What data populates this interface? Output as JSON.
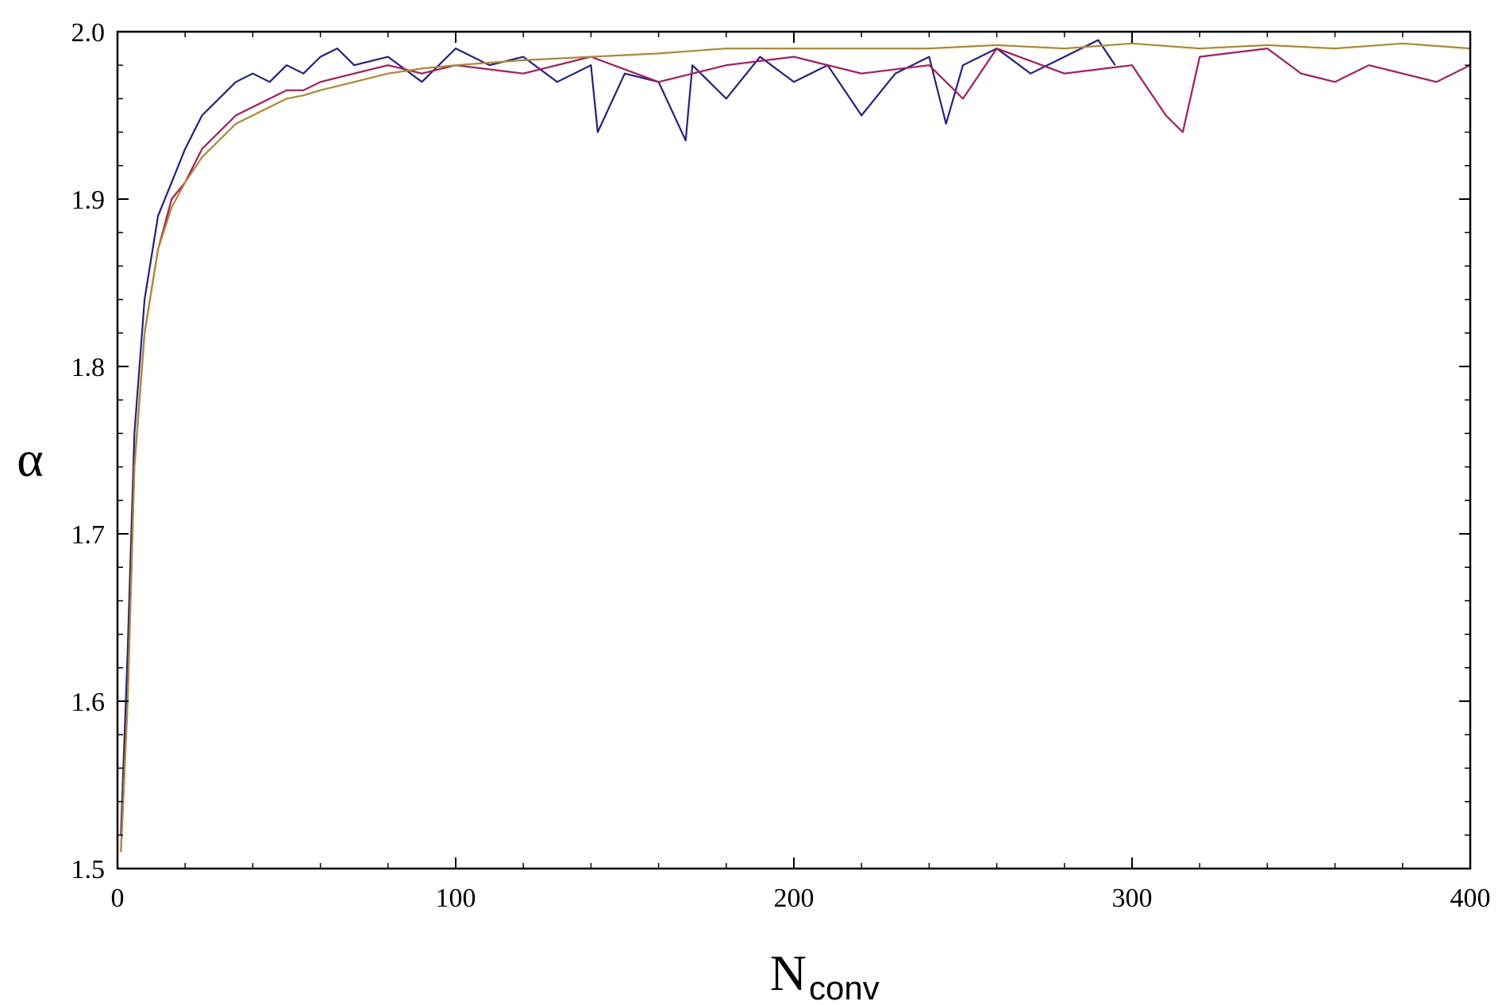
{
  "chart_data": {
    "type": "line",
    "title": "",
    "xlabel": "N",
    "xlabel_subscript": "conv",
    "ylabel": "α",
    "xlim": [
      0,
      400
    ],
    "ylim": [
      1.5,
      2.0
    ],
    "x_ticks": [
      0,
      100,
      200,
      300,
      400
    ],
    "x_tick_labels": [
      "0",
      "100",
      "200",
      "300",
      "400"
    ],
    "y_ticks": [
      1.5,
      1.6,
      1.7,
      1.8,
      1.9,
      2.0
    ],
    "y_tick_labels": [
      "1.5",
      "1.6",
      "1.7",
      "1.8",
      "1.9",
      "2.0"
    ],
    "grid": false,
    "legend": "none",
    "series": [
      {
        "color": "#1f1f8f",
        "x": [
          1,
          3,
          5,
          8,
          12,
          16,
          20,
          25,
          30,
          35,
          40,
          45,
          50,
          55,
          60,
          65,
          70,
          80,
          90,
          100,
          110,
          120,
          130,
          140,
          142,
          150,
          160,
          168,
          170,
          180,
          190,
          200,
          210,
          220,
          230,
          240,
          245,
          250,
          260,
          270,
          280,
          290,
          295
        ],
        "values": [
          1.52,
          1.63,
          1.76,
          1.84,
          1.89,
          1.91,
          1.93,
          1.95,
          1.96,
          1.97,
          1.975,
          1.97,
          1.98,
          1.975,
          1.985,
          1.99,
          1.98,
          1.985,
          1.97,
          1.99,
          1.98,
          1.985,
          1.97,
          1.98,
          1.94,
          1.975,
          1.97,
          1.935,
          1.98,
          1.96,
          1.985,
          1.97,
          1.98,
          1.95,
          1.975,
          1.985,
          1.945,
          1.98,
          1.99,
          1.975,
          1.985,
          1.995,
          1.98
        ]
      },
      {
        "color": "#b0165e",
        "x": [
          1,
          3,
          5,
          8,
          12,
          16,
          20,
          25,
          30,
          35,
          40,
          45,
          50,
          55,
          60,
          70,
          80,
          90,
          100,
          120,
          140,
          160,
          180,
          200,
          220,
          240,
          250,
          260,
          280,
          300,
          310,
          315,
          320,
          340,
          350,
          360,
          370,
          380,
          390,
          400
        ],
        "values": [
          1.51,
          1.6,
          1.74,
          1.82,
          1.87,
          1.9,
          1.91,
          1.93,
          1.94,
          1.95,
          1.955,
          1.96,
          1.965,
          1.965,
          1.97,
          1.975,
          1.98,
          1.975,
          1.98,
          1.975,
          1.985,
          1.97,
          1.98,
          1.985,
          1.975,
          1.98,
          1.96,
          1.99,
          1.975,
          1.98,
          1.95,
          1.94,
          1.985,
          1.99,
          1.975,
          1.97,
          1.98,
          1.975,
          1.97,
          1.98
        ]
      },
      {
        "color": "#b08a2a",
        "x": [
          1,
          3,
          5,
          8,
          12,
          16,
          20,
          25,
          30,
          35,
          40,
          45,
          50,
          55,
          60,
          70,
          80,
          90,
          100,
          120,
          140,
          160,
          180,
          200,
          220,
          240,
          260,
          280,
          300,
          320,
          340,
          360,
          380,
          400
        ],
        "values": [
          1.51,
          1.6,
          1.74,
          1.82,
          1.87,
          1.895,
          1.91,
          1.925,
          1.935,
          1.945,
          1.95,
          1.955,
          1.96,
          1.962,
          1.965,
          1.97,
          1.975,
          1.978,
          1.98,
          1.983,
          1.985,
          1.987,
          1.99,
          1.99,
          1.99,
          1.99,
          1.992,
          1.99,
          1.993,
          1.99,
          1.992,
          1.99,
          1.993,
          1.99
        ]
      }
    ]
  }
}
